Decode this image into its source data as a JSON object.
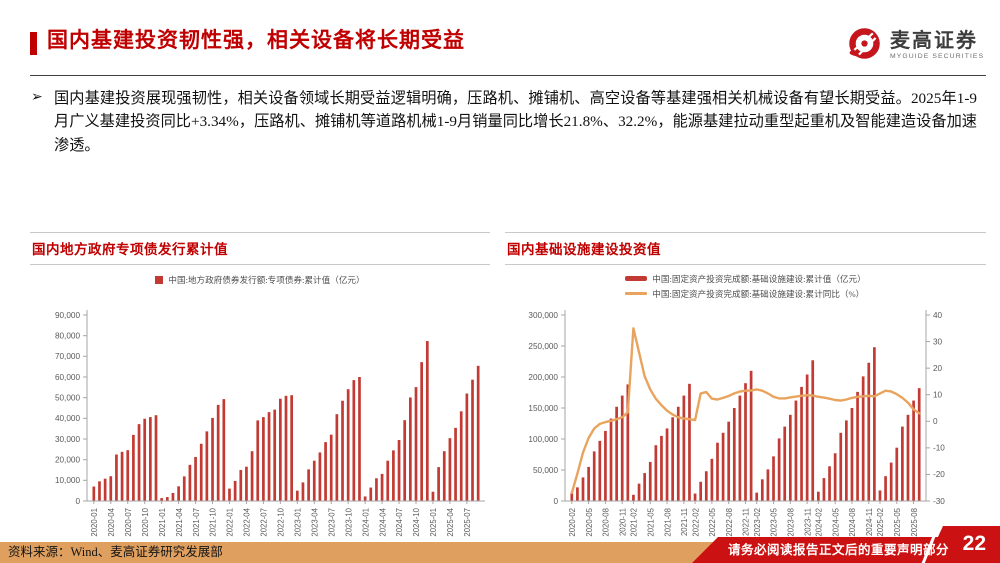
{
  "header": {
    "title": "国内基建投资韧性强，相关设备将长期受益",
    "logo_cn": "麦高证券",
    "logo_en": "MYGUIDE SECURITIES"
  },
  "summary": {
    "bullet": "➢",
    "text": "国内基建投资展现强韧性，相关设备领域长期受益逻辑明确，压路机、摊铺机、高空设备等基建强相关机械设备有望长期受益。2025年1-9月广义基建投资同比+3.34%，压路机、摊铺机等道路机械1-9月销量同比增长21.8%、32.2%，能源基建拉动重型起重机及智能建造设备加速渗透。"
  },
  "footer": {
    "source": "资料来源：Wind、麦高证券研究发展部",
    "disclaimer": "请务必阅读报告正文后的重要声明部分",
    "page": "22"
  },
  "colors": {
    "accent_red": "#c00000",
    "bar_red": "#c23a33",
    "line_orange": "#e8a45e",
    "band_orange": "#dfa05f",
    "banner_red": "#cb1111",
    "axis_gray": "#a6a6a6",
    "label_gray": "#595959"
  },
  "chart_data": [
    {
      "type": "bar",
      "title": "国内地方政府专项债发行累计值",
      "legend": [
        "中国:地方政府债券发行额:专项债券:累计值（亿元）"
      ],
      "xlabel": "",
      "ylabel": "",
      "ylim": [
        0,
        90000
      ],
      "yticks": [
        0,
        10000,
        20000,
        30000,
        40000,
        50000,
        60000,
        70000,
        80000,
        90000
      ],
      "grid": false,
      "legend_position": "top-center",
      "categories": [
        "2020-01",
        "2020-02",
        "2020-03",
        "2020-04",
        "2020-05",
        "2020-06",
        "2020-07",
        "2020-08",
        "2020-09",
        "2020-10",
        "2020-11",
        "2020-12",
        "2021-01",
        "2021-02",
        "2021-03",
        "2021-04",
        "2021-05",
        "2021-06",
        "2021-07",
        "2021-08",
        "2021-09",
        "2021-10",
        "2021-11",
        "2021-12",
        "2022-01",
        "2022-02",
        "2022-03",
        "2022-04",
        "2022-05",
        "2022-06",
        "2022-07",
        "2022-08",
        "2022-09",
        "2022-10",
        "2022-11",
        "2022-12",
        "2023-01",
        "2023-02",
        "2023-03",
        "2023-04",
        "2023-05",
        "2023-06",
        "2023-07",
        "2023-08",
        "2023-09",
        "2023-10",
        "2023-11",
        "2023-12",
        "2024-01",
        "2024-02",
        "2024-03",
        "2024-04",
        "2024-05",
        "2024-06",
        "2024-07",
        "2024-08",
        "2024-09",
        "2024-10",
        "2024-11",
        "2024-12",
        "2025-01",
        "2025-02",
        "2025-03",
        "2025-04",
        "2025-05",
        "2025-06",
        "2025-07",
        "2025-08",
        "2025-09"
      ],
      "values": [
        7000,
        9500,
        10800,
        12000,
        22500,
        23800,
        24600,
        32000,
        37200,
        39800,
        40600,
        41500,
        1400,
        1900,
        3900,
        7100,
        11900,
        17500,
        21300,
        27700,
        33700,
        40200,
        46500,
        49300,
        6000,
        9700,
        15000,
        16600,
        24100,
        39000,
        40600,
        43000,
        44200,
        49500,
        50900,
        51200,
        5000,
        9000,
        15300,
        19500,
        23500,
        28500,
        32100,
        42000,
        48500,
        54100,
        58500,
        60000,
        2200,
        6500,
        11000,
        13100,
        19500,
        24500,
        29500,
        39100,
        50100,
        55100,
        67200,
        77400,
        4500,
        16400,
        24100,
        30400,
        35400,
        43400,
        52000,
        58700,
        65400
      ],
      "xticks": [
        "2020-01",
        "2020-04",
        "2020-07",
        "2020-10",
        "2021-01",
        "2021-04",
        "2021-07",
        "2021-10",
        "2022-01",
        "2022-04",
        "2022-07",
        "2022-10",
        "2023-01",
        "2023-04",
        "2023-07",
        "2023-10",
        "2024-01",
        "2024-04",
        "2024-07",
        "2024-10",
        "2025-01",
        "2025-04",
        "2025-07"
      ]
    },
    {
      "type": "bar+line",
      "title": "国内基础设施建设投资值",
      "legend": [
        "中国:固定资产投资完成额:基础设施建设:累计值（亿元）",
        "中国:固定资产投资完成额:基础设施建设:累计同比（%）"
      ],
      "xlabel": "",
      "ylabel": "",
      "ylim": [
        0,
        300000
      ],
      "yticks": [
        0,
        50000,
        100000,
        150000,
        200000,
        250000,
        300000
      ],
      "y2lim": [
        -30,
        40
      ],
      "y2ticks": [
        -30,
        -20,
        -10,
        0,
        10,
        20,
        30,
        40
      ],
      "grid": false,
      "legend_position": "top-center",
      "categories": [
        "2020-02",
        "2020-03",
        "2020-04",
        "2020-05",
        "2020-06",
        "2020-07",
        "2020-08",
        "2020-09",
        "2020-10",
        "2020-11",
        "2020-12",
        "2021-02",
        "2021-03",
        "2021-04",
        "2021-05",
        "2021-06",
        "2021-07",
        "2021-08",
        "2021-09",
        "2021-10",
        "2021-11",
        "2021-12",
        "2022-02",
        "2022-03",
        "2022-04",
        "2022-05",
        "2022-06",
        "2022-07",
        "2022-08",
        "2022-09",
        "2022-10",
        "2022-11",
        "2022-12",
        "2023-02",
        "2023-03",
        "2023-04",
        "2023-05",
        "2023-06",
        "2023-07",
        "2023-08",
        "2023-09",
        "2023-10",
        "2023-11",
        "2023-12",
        "2024-02",
        "2024-03",
        "2024-04",
        "2024-05",
        "2024-06",
        "2024-07",
        "2024-08",
        "2024-09",
        "2024-10",
        "2024-11",
        "2024-12",
        "2025-02",
        "2025-03",
        "2025-04",
        "2025-05",
        "2025-06",
        "2025-07",
        "2025-08",
        "2025-09"
      ],
      "series": [
        {
          "name": "累计值（亿元）",
          "axis": "left",
          "kind": "bar",
          "values": [
            13000,
            22000,
            38000,
            55000,
            80000,
            97000,
            113000,
            133000,
            152000,
            170000,
            188000,
            10000,
            28000,
            45000,
            63000,
            90000,
            105000,
            117000,
            135000,
            152000,
            170000,
            189000,
            12000,
            31000,
            48000,
            68000,
            94000,
            110000,
            128000,
            150000,
            170000,
            190000,
            210000,
            13500,
            35000,
            51000,
            72000,
            101000,
            120000,
            139000,
            162000,
            184000,
            204000,
            227000,
            15000,
            37000,
            56000,
            77000,
            110000,
            130000,
            150000,
            176000,
            201000,
            223000,
            248000,
            17000,
            40000,
            62000,
            86000,
            120000,
            139000,
            162000,
            182000
          ]
        },
        {
          "name": "累计同比（%）",
          "axis": "right",
          "kind": "line",
          "values": [
            -27,
            -19.7,
            -11.8,
            -6.3,
            -2.7,
            -1,
            -0.3,
            0.2,
            0.8,
            1.5,
            3.4,
            35,
            26,
            17,
            12,
            8.5,
            6,
            4,
            2.5,
            1.5,
            1,
            0.8,
            0.5,
            10.5,
            11,
            8.5,
            8.2,
            8.8,
            9.5,
            10.5,
            11.2,
            11.5,
            11.6,
            12,
            11.5,
            10.5,
            9.2,
            8.6,
            8.6,
            9,
            9.3,
            9.6,
            9.8,
            9.7,
            9.2,
            8.9,
            8.5,
            8,
            7.8,
            8.2,
            8.8,
            9.2,
            9.4,
            9.6,
            9.4,
            10.5,
            11.5,
            11.2,
            10.2,
            8.8,
            7,
            4.5,
            3
          ]
        }
      ],
      "xticks": [
        "2020-02",
        "2020-05",
        "2020-08",
        "2020-11",
        "2021-02",
        "2021-05",
        "2021-08",
        "2021-11",
        "2022-02",
        "2022-05",
        "2022-08",
        "2022-11",
        "2023-02",
        "2023-05",
        "2023-08",
        "2023-11",
        "2024-02",
        "2024-05",
        "2024-08",
        "2024-11",
        "2025-02",
        "2025-05",
        "2025-08"
      ]
    }
  ]
}
